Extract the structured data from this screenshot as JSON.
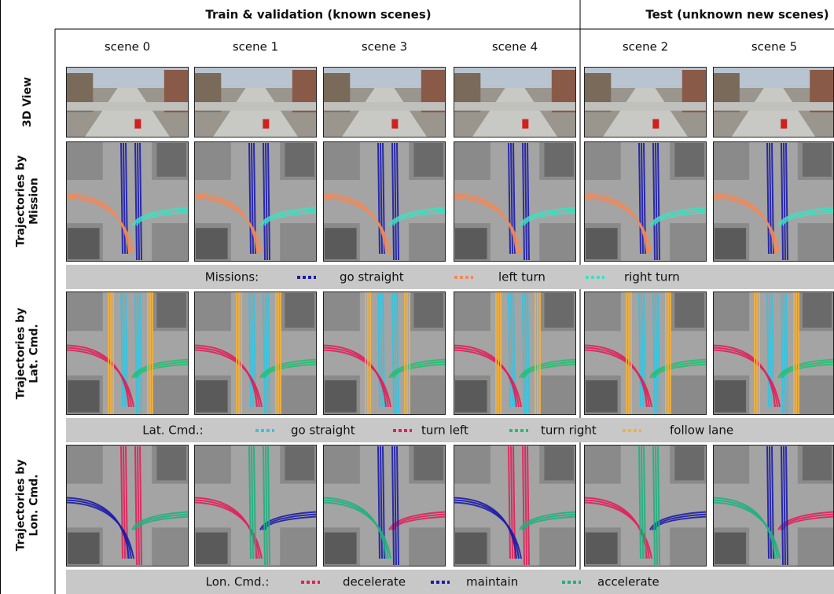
{
  "header": {
    "groups": [
      "Train & validation (known scenes)",
      "Test (unknown new scenes)"
    ]
  },
  "scenes": [
    "scene 0",
    "scene 1",
    "scene 3",
    "scene 4",
    "scene 2",
    "scene 5"
  ],
  "row_labels": [
    [
      "3D View"
    ],
    [
      "Trajectories by",
      "Mission"
    ],
    [
      "Trajectories by",
      "Lat. Cmd."
    ],
    [
      "Trajectories by",
      "Lon. Cmd."
    ]
  ],
  "legends": [
    {
      "label": "Missions:",
      "items": [
        {
          "name": "go straight",
          "color": "#1c1ca8"
        },
        {
          "name": "left turn",
          "color": "#f08a5a"
        },
        {
          "name": "right turn",
          "color": "#40e0c0"
        }
      ]
    },
    {
      "label": "Lat. Cmd.:",
      "items": [
        {
          "name": "go straight",
          "color": "#33c3e0"
        },
        {
          "name": "turn left",
          "color": "#e0205a"
        },
        {
          "name": "turn right",
          "color": "#20c070"
        },
        {
          "name": "follow lane",
          "color": "#f0b040"
        }
      ]
    },
    {
      "label": "Lon. Cmd.:",
      "items": [
        {
          "name": "decelerate",
          "color": "#e0205a"
        },
        {
          "name": "maintain",
          "color": "#1c1ca8"
        },
        {
          "name": "accelerate",
          "color": "#20b080"
        }
      ]
    }
  ]
}
